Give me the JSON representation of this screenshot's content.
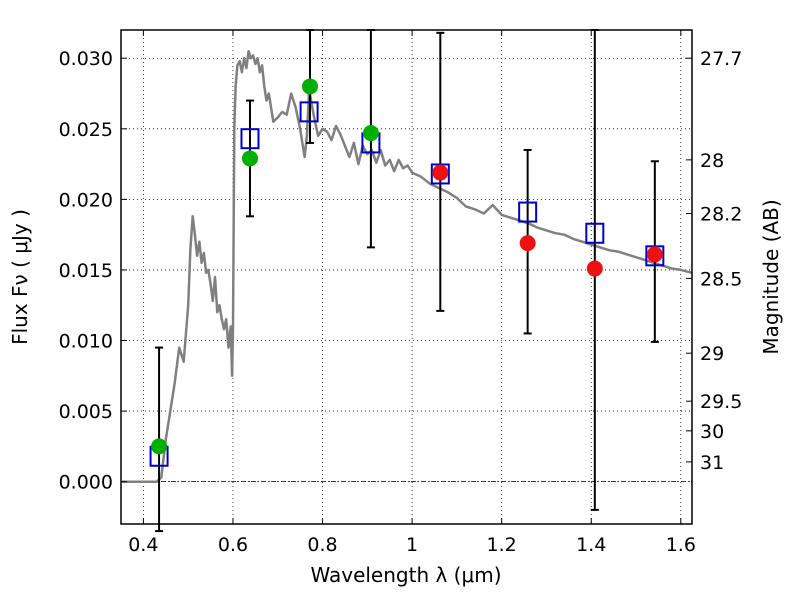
{
  "chart_data": {
    "type": "scatter",
    "xlabel": "Wavelength  λ (μm)",
    "ylabel": "Flux  Fν  ( μJy )",
    "y2label": "Magnitude (AB)",
    "xlim": [
      0.35,
      1.625
    ],
    "ylim": [
      -0.003,
      0.032
    ],
    "grid": true,
    "x_ticks": [
      0.4,
      0.6,
      0.8,
      1.0,
      1.2,
      1.4,
      1.6
    ],
    "x_tick_labels": [
      "0.4",
      "0.6",
      "0.8",
      "1",
      "1.2",
      "1.4",
      "1.6"
    ],
    "y_ticks": [
      0.0,
      0.005,
      0.01,
      0.015,
      0.02,
      0.025,
      0.03
    ],
    "y_tick_labels": [
      "0.000",
      "0.005",
      "0.010",
      "0.015",
      "0.020",
      "0.025",
      "0.030"
    ],
    "y2_ticks": [
      {
        "label": "27.7",
        "flux": 0.03
      },
      {
        "label": "28",
        "flux": 0.0228
      },
      {
        "label": "28.2",
        "flux": 0.019
      },
      {
        "label": "28.5",
        "flux": 0.0144
      },
      {
        "label": "29",
        "flux": 0.0091
      },
      {
        "label": "29.5",
        "flux": 0.0057
      },
      {
        "label": "30",
        "flux": 0.0036
      },
      {
        "label": "31",
        "flux": 0.0014
      }
    ],
    "zero_line": 0.0,
    "colors": {
      "model": "#808080",
      "squares": "#0000cc",
      "green": "#00b000",
      "red": "#ee1111",
      "errorbar": "#000000"
    },
    "model_spectrum": {
      "x": [
        0.35,
        0.43,
        0.44,
        0.45,
        0.46,
        0.47,
        0.48,
        0.49,
        0.5,
        0.505,
        0.51,
        0.515,
        0.52,
        0.525,
        0.53,
        0.535,
        0.54,
        0.545,
        0.55,
        0.555,
        0.56,
        0.565,
        0.57,
        0.575,
        0.58,
        0.585,
        0.59,
        0.595,
        0.598,
        0.6,
        0.603,
        0.606,
        0.61,
        0.615,
        0.62,
        0.625,
        0.63,
        0.635,
        0.64,
        0.645,
        0.65,
        0.655,
        0.66,
        0.665,
        0.67,
        0.675,
        0.68,
        0.69,
        0.7,
        0.71,
        0.72,
        0.73,
        0.74,
        0.75,
        0.76,
        0.765,
        0.77,
        0.78,
        0.79,
        0.8,
        0.81,
        0.82,
        0.83,
        0.84,
        0.85,
        0.86,
        0.87,
        0.88,
        0.89,
        0.9,
        0.91,
        0.92,
        0.93,
        0.94,
        0.95,
        0.96,
        0.97,
        0.98,
        0.99,
        1.0,
        1.02,
        1.04,
        1.06,
        1.08,
        1.1,
        1.12,
        1.14,
        1.16,
        1.18,
        1.2,
        1.22,
        1.24,
        1.26,
        1.28,
        1.3,
        1.32,
        1.34,
        1.36,
        1.38,
        1.4,
        1.42,
        1.44,
        1.46,
        1.48,
        1.5,
        1.52,
        1.54,
        1.56,
        1.58,
        1.6,
        1.625
      ],
      "y": [
        0.0,
        0.0,
        0.0003,
        0.003,
        0.005,
        0.007,
        0.0095,
        0.0085,
        0.0125,
        0.0165,
        0.0188,
        0.0175,
        0.016,
        0.017,
        0.0155,
        0.0162,
        0.0148,
        0.015,
        0.014,
        0.0128,
        0.0145,
        0.012,
        0.0125,
        0.0115,
        0.0108,
        0.0115,
        0.0095,
        0.011,
        0.0075,
        0.011,
        0.025,
        0.028,
        0.0295,
        0.0298,
        0.029,
        0.03,
        0.0293,
        0.0305,
        0.03,
        0.0302,
        0.0296,
        0.03,
        0.029,
        0.0295,
        0.028,
        0.027,
        0.0275,
        0.0255,
        0.0258,
        0.0262,
        0.026,
        0.0275,
        0.0265,
        0.025,
        0.023,
        0.0245,
        0.0278,
        0.026,
        0.0245,
        0.025,
        0.0248,
        0.0242,
        0.0252,
        0.0246,
        0.0238,
        0.023,
        0.024,
        0.0225,
        0.0238,
        0.0232,
        0.0235,
        0.0226,
        0.0235,
        0.0224,
        0.0228,
        0.022,
        0.0228,
        0.0222,
        0.0224,
        0.0219,
        0.0216,
        0.0211,
        0.0208,
        0.0205,
        0.0201,
        0.0195,
        0.0193,
        0.019,
        0.0196,
        0.0189,
        0.0187,
        0.0185,
        0.0183,
        0.018,
        0.0178,
        0.0176,
        0.0175,
        0.0172,
        0.017,
        0.0168,
        0.0166,
        0.0164,
        0.0163,
        0.0161,
        0.0159,
        0.0157,
        0.0155,
        0.0153,
        0.0151,
        0.015,
        0.0148
      ]
    },
    "model_photometry": [
      {
        "x": 0.435,
        "y": 0.0018
      },
      {
        "x": 0.638,
        "y": 0.0243
      },
      {
        "x": 0.77,
        "y": 0.0262
      },
      {
        "x": 0.908,
        "y": 0.024
      },
      {
        "x": 1.063,
        "y": 0.0218
      },
      {
        "x": 1.258,
        "y": 0.0191
      },
      {
        "x": 1.408,
        "y": 0.0176
      },
      {
        "x": 1.542,
        "y": 0.016
      }
    ],
    "observed_green": [
      {
        "x": 0.435,
        "y": 0.0025
      },
      {
        "x": 0.638,
        "y": 0.0229
      },
      {
        "x": 0.772,
        "y": 0.028
      },
      {
        "x": 0.908,
        "y": 0.0247
      }
    ],
    "observed_red": [
      {
        "x": 1.063,
        "y": 0.0219
      },
      {
        "x": 1.258,
        "y": 0.0169
      },
      {
        "x": 1.408,
        "y": 0.0151
      },
      {
        "x": 1.542,
        "y": 0.0161
      }
    ],
    "error_bars": [
      {
        "x": 0.435,
        "low": -0.0035,
        "high": 0.0095
      },
      {
        "x": 0.638,
        "low": 0.0188,
        "high": 0.027
      },
      {
        "x": 0.772,
        "low": 0.024,
        "high": 0.032
      },
      {
        "x": 0.908,
        "low": 0.0166,
        "high": 0.032
      },
      {
        "x": 1.063,
        "low": 0.0121,
        "high": 0.0318
      },
      {
        "x": 1.258,
        "low": 0.0105,
        "high": 0.0235
      },
      {
        "x": 1.408,
        "low": -0.002,
        "high": 0.032
      },
      {
        "x": 1.542,
        "low": 0.0099,
        "high": 0.0227
      }
    ]
  }
}
